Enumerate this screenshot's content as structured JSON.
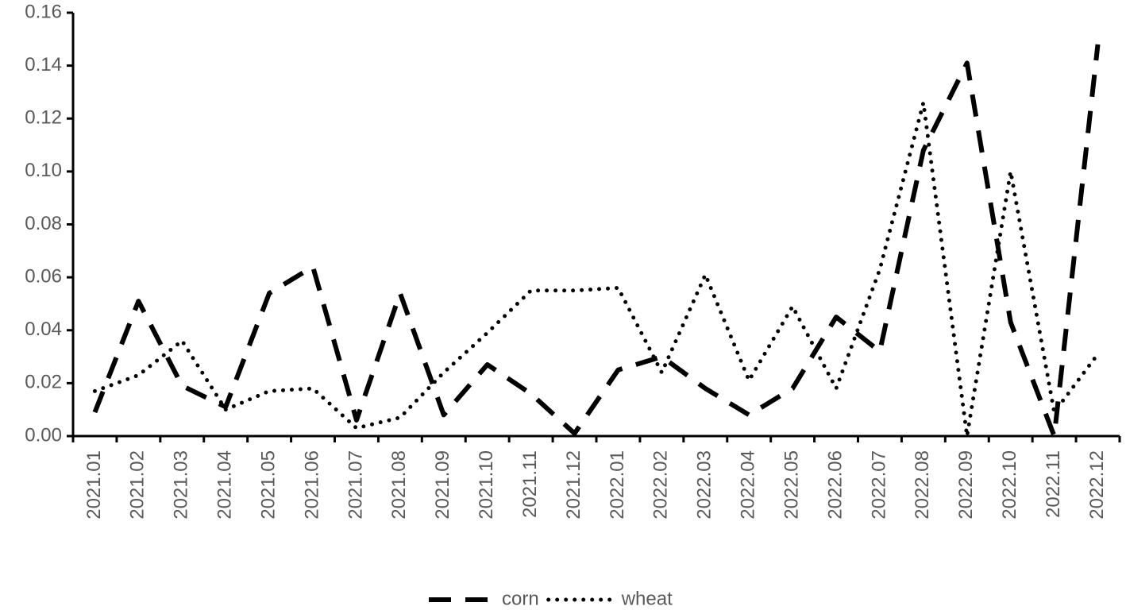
{
  "chart_data": {
    "type": "line",
    "categories": [
      "2021.01",
      "2021.02",
      "2021.03",
      "2021.04",
      "2021.05",
      "2021.06",
      "2021.07",
      "2021.08",
      "2021.09",
      "2021.10",
      "2021.11",
      "2021.12",
      "2022.01",
      "2022.02",
      "2022.03",
      "2022.04",
      "2022.05",
      "2022.06",
      "2022.07",
      "2022.08",
      "2022.09",
      "2022.10",
      "2022.11",
      "2022.12"
    ],
    "series": [
      {
        "name": "corn",
        "color": "#000000",
        "style": "dashed",
        "values": [
          0.009,
          0.051,
          0.019,
          0.011,
          0.054,
          0.064,
          0.006,
          0.054,
          0.008,
          0.027,
          0.016,
          0.001,
          0.025,
          0.03,
          0.018,
          0.008,
          0.018,
          0.045,
          0.032,
          0.108,
          0.141,
          0.043,
          0.0,
          0.148
        ]
      },
      {
        "name": "wheat",
        "color": "#000000",
        "style": "dotted",
        "values": [
          0.017,
          0.023,
          0.036,
          0.01,
          0.017,
          0.018,
          0.003,
          0.007,
          0.024,
          0.039,
          0.055,
          0.055,
          0.056,
          0.024,
          0.061,
          0.021,
          0.049,
          0.018,
          0.063,
          0.126,
          0.0,
          0.1,
          0.009,
          0.031
        ]
      }
    ],
    "ylim": [
      0,
      0.16
    ],
    "yticks": [
      {
        "value": 0,
        "label": "0.00"
      },
      {
        "value": 0.02,
        "label": "0.02"
      },
      {
        "value": 0.04,
        "label": "0.04"
      },
      {
        "value": 0.06,
        "label": "0.06"
      },
      {
        "value": 0.08,
        "label": "0.08"
      },
      {
        "value": 0.1,
        "label": "0.10"
      },
      {
        "value": 0.12,
        "label": "0.12"
      },
      {
        "value": 0.14,
        "label": "0.14"
      },
      {
        "value": 0.16,
        "label": "0.16"
      }
    ],
    "grid": false,
    "legend": "bottom"
  }
}
